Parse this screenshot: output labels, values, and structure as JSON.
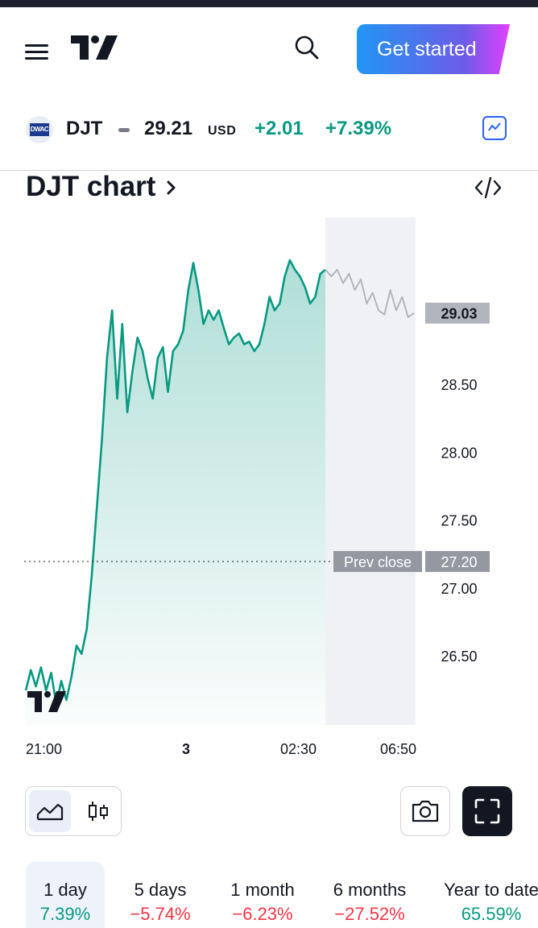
{
  "header": {
    "get_started_label": "Get started"
  },
  "symbol": {
    "logo_text": "DWAC",
    "ticker": "DJT",
    "price": "29.21",
    "currency": "USD",
    "change": "+2.01",
    "change_pct": "+7.39%"
  },
  "chart_title": "DJT chart",
  "chart_data": {
    "type": "area",
    "title": "DJT chart",
    "x_ticks": [
      "21:00",
      "3",
      "02:30",
      "06:50"
    ],
    "y_ticks": [
      "29.03",
      "28.50",
      "28.00",
      "27.50",
      "27.00",
      "26.50"
    ],
    "ylim": [
      26.1,
      29.5
    ],
    "last_price_label": "29.03",
    "prev_close_label": "Prev close",
    "prev_close_value": "27.20",
    "series": [
      {
        "values": [
          26.25,
          26.4,
          26.28,
          26.42,
          26.25,
          26.38,
          26.15,
          26.32,
          26.18,
          26.35,
          26.58,
          26.52,
          26.7,
          27.1,
          27.6,
          28.1,
          28.7,
          29.05,
          28.4,
          28.95,
          28.3,
          28.6,
          28.85,
          28.75,
          28.55,
          28.4,
          28.7,
          28.78,
          28.45,
          28.75,
          28.8,
          28.9,
          29.2,
          29.4,
          29.2,
          28.95,
          29.05,
          28.98,
          29.05,
          28.92,
          28.8,
          28.85,
          28.88,
          28.8,
          28.82,
          28.75,
          28.8,
          28.95,
          29.15,
          29.05,
          29.1,
          29.3,
          29.42,
          29.35,
          29.3,
          29.22,
          29.1,
          29.15,
          29.32,
          29.35
        ]
      },
      {
        "values": [
          29.35,
          29.3,
          29.35,
          29.25,
          29.32,
          29.2,
          29.28,
          29.1,
          29.18,
          29.05,
          29.02,
          29.2,
          29.05,
          29.15,
          29.0,
          29.03
        ]
      }
    ]
  },
  "periods": [
    {
      "label": "1 day",
      "value": "7.39%",
      "trend": "pos",
      "active": true
    },
    {
      "label": "5 days",
      "value": "−5.74%",
      "trend": "neg",
      "active": false
    },
    {
      "label": "1 month",
      "value": "−6.23%",
      "trend": "neg",
      "active": false
    },
    {
      "label": "6 months",
      "value": "−27.52%",
      "trend": "neg",
      "active": false
    },
    {
      "label": "Year to date",
      "value": "65.59%",
      "trend": "pos",
      "active": false
    }
  ],
  "colors": {
    "accent": "#089981",
    "negative": "#f23645",
    "brand_blue": "#2962ff"
  }
}
